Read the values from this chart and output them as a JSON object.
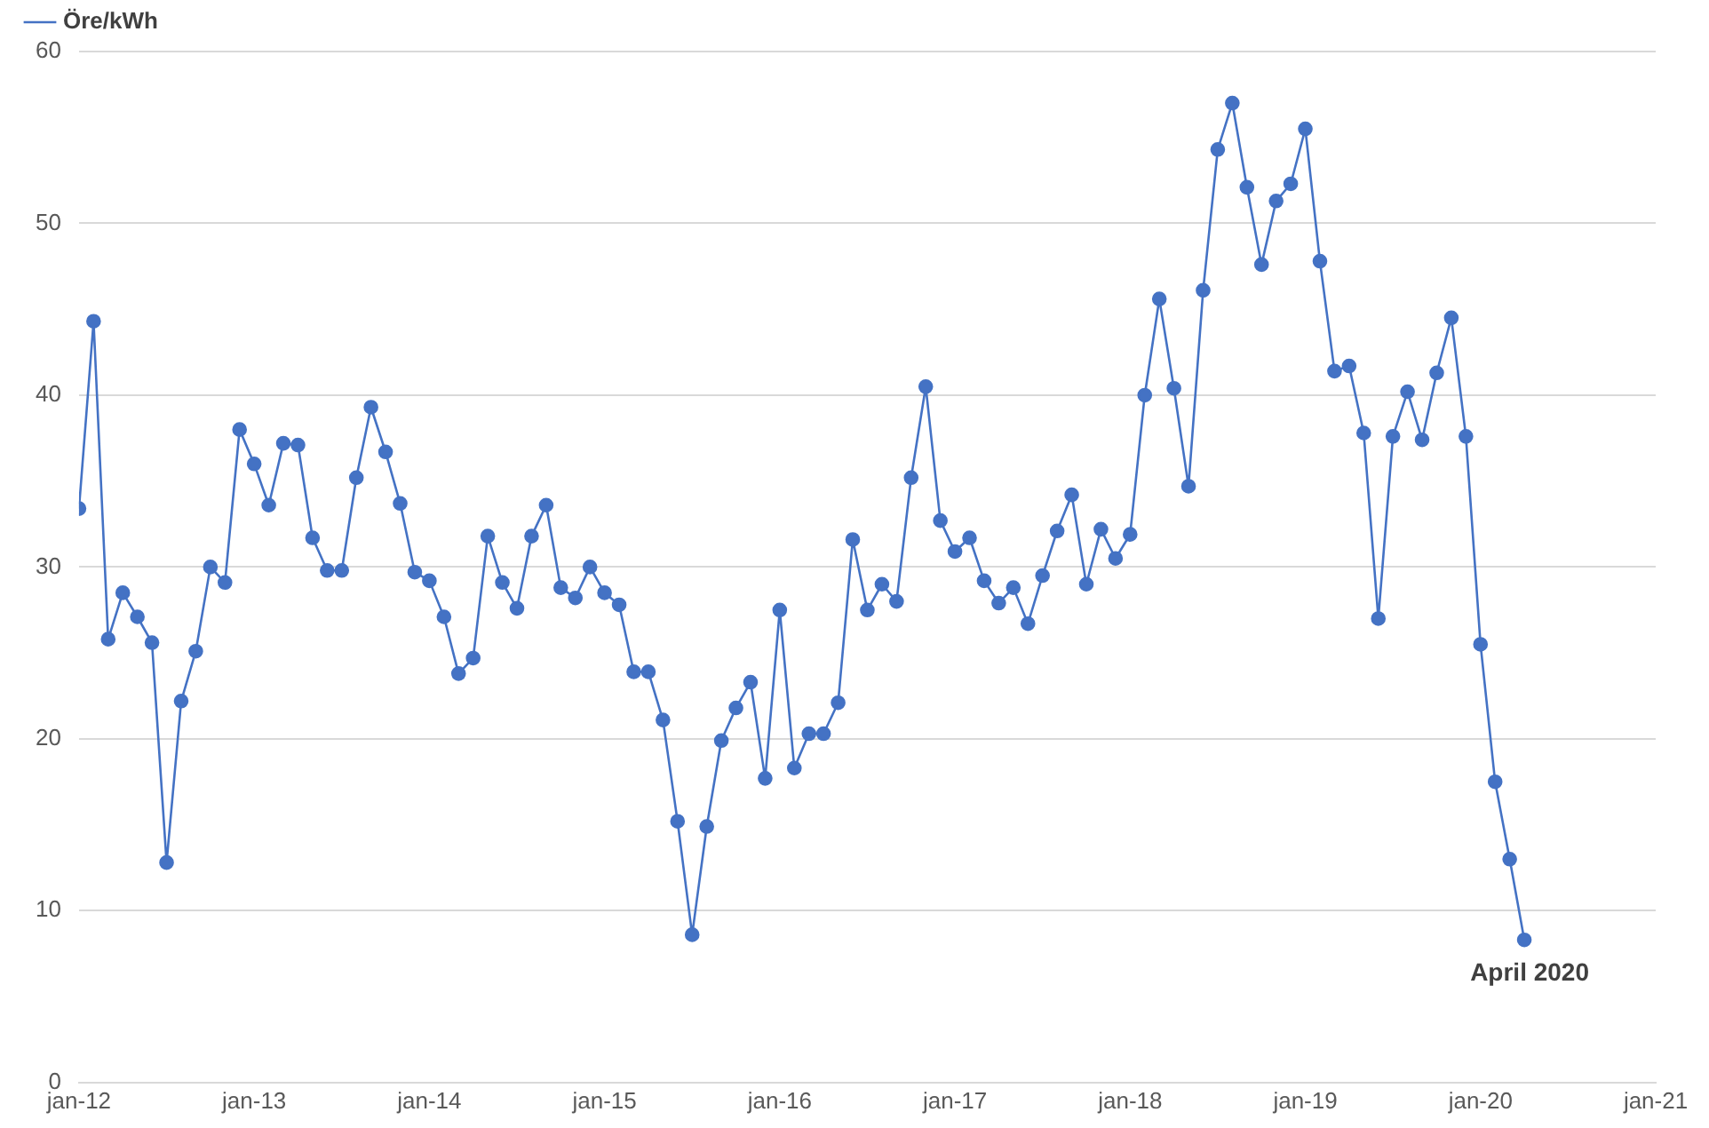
{
  "chart_data": {
    "type": "line",
    "x": [
      "2012-01",
      "2012-02",
      "2012-03",
      "2012-04",
      "2012-05",
      "2012-06",
      "2012-07",
      "2012-08",
      "2012-09",
      "2012-10",
      "2012-11",
      "2012-12",
      "2013-01",
      "2013-02",
      "2013-03",
      "2013-04",
      "2013-05",
      "2013-06",
      "2013-07",
      "2013-08",
      "2013-09",
      "2013-10",
      "2013-11",
      "2013-12",
      "2014-01",
      "2014-02",
      "2014-03",
      "2014-04",
      "2014-05",
      "2014-06",
      "2014-07",
      "2014-08",
      "2014-09",
      "2014-10",
      "2014-11",
      "2014-12",
      "2015-01",
      "2015-02",
      "2015-03",
      "2015-04",
      "2015-05",
      "2015-06",
      "2015-07",
      "2015-08",
      "2015-09",
      "2015-10",
      "2015-11",
      "2015-12",
      "2016-01",
      "2016-02",
      "2016-03",
      "2016-04",
      "2016-05",
      "2016-06",
      "2016-07",
      "2016-08",
      "2016-09",
      "2016-10",
      "2016-11",
      "2016-12",
      "2017-01",
      "2017-02",
      "2017-03",
      "2017-04",
      "2017-05",
      "2017-06",
      "2017-07",
      "2017-08",
      "2017-09",
      "2017-10",
      "2017-11",
      "2017-12",
      "2018-01",
      "2018-02",
      "2018-03",
      "2018-04",
      "2018-05",
      "2018-06",
      "2018-07",
      "2018-08",
      "2018-09",
      "2018-10",
      "2018-11",
      "2018-12",
      "2019-01",
      "2019-02",
      "2019-03",
      "2019-04",
      "2019-05",
      "2019-06",
      "2019-07",
      "2019-08",
      "2019-09",
      "2019-10",
      "2019-11",
      "2019-12",
      "2020-01",
      "2020-02",
      "2020-03",
      "2020-04"
    ],
    "series": [
      {
        "name": "Öre/kWh",
        "color": "#4472c4",
        "values": [
          33.4,
          44.3,
          25.8,
          28.5,
          27.1,
          25.6,
          12.8,
          22.2,
          25.1,
          30.0,
          29.1,
          38.0,
          36.0,
          33.6,
          37.2,
          37.1,
          31.7,
          29.8,
          29.8,
          35.2,
          39.3,
          36.7,
          33.7,
          29.7,
          29.2,
          27.1,
          23.8,
          24.7,
          31.8,
          29.1,
          27.6,
          31.8,
          33.6,
          28.8,
          28.2,
          30.0,
          28.5,
          27.8,
          23.9,
          23.9,
          21.1,
          15.2,
          8.6,
          14.9,
          19.9,
          21.8,
          23.3,
          17.7,
          27.5,
          18.3,
          20.3,
          20.3,
          22.1,
          31.6,
          27.5,
          29.0,
          28.0,
          35.2,
          40.5,
          32.7,
          30.9,
          31.7,
          29.2,
          27.9,
          28.8,
          26.7,
          29.5,
          32.1,
          34.2,
          29.0,
          32.2,
          30.5,
          31.9,
          40.0,
          45.6,
          40.4,
          34.7,
          46.1,
          54.3,
          57.0,
          52.1,
          47.6,
          51.3,
          52.3,
          55.5,
          47.8,
          41.4,
          41.7,
          37.8,
          27.0,
          37.6,
          40.2,
          37.4,
          41.3,
          44.5,
          37.6,
          25.5,
          17.5,
          13.0,
          8.3
        ]
      }
    ],
    "xlim": [
      "2012-01",
      "2021-01"
    ],
    "xticks": [
      {
        "value": "2012-01",
        "label": "jan-12"
      },
      {
        "value": "2013-01",
        "label": "jan-13"
      },
      {
        "value": "2014-01",
        "label": "jan-14"
      },
      {
        "value": "2015-01",
        "label": "jan-15"
      },
      {
        "value": "2016-01",
        "label": "jan-16"
      },
      {
        "value": "2017-01",
        "label": "jan-17"
      },
      {
        "value": "2018-01",
        "label": "jan-18"
      },
      {
        "value": "2019-01",
        "label": "jan-19"
      },
      {
        "value": "2020-01",
        "label": "jan-20"
      },
      {
        "value": "2021-01",
        "label": "jan-21"
      }
    ],
    "ylim": [
      0,
      60
    ],
    "yticks": [
      0,
      10,
      20,
      30,
      40,
      50,
      60
    ],
    "grid": "y",
    "legend": "top left",
    "marker": "circle",
    "line_style": "solid",
    "annotations": [
      {
        "text": "April 2020",
        "x": "2020-04",
        "y": 8.3
      }
    ]
  }
}
